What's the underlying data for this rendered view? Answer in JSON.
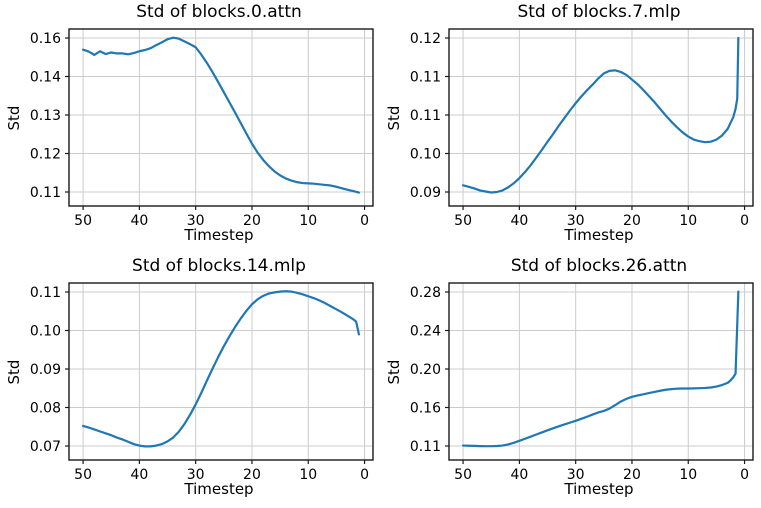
{
  "figure": {
    "background": "#ffffff",
    "line_color": "#1f77b4",
    "grid_color": "#cccccc",
    "spine_color": "#1a1a1a",
    "text_color": "#000000"
  },
  "chart_data": [
    {
      "type": "line",
      "title": "Std of blocks.0.attn",
      "xlabel": "Timestep",
      "ylabel": "Std",
      "x_axis_reversed": true,
      "xlim": [
        52.5,
        -1.5
      ],
      "x_ticks": [
        50,
        40,
        30,
        20,
        10,
        0
      ],
      "y_tick_values": [
        0.16,
        0.1475,
        0.135,
        0.1225,
        0.11
      ],
      "y_tick_labels": [
        "0.16",
        "0.14",
        "0.13",
        "0.12",
        "0.11"
      ],
      "grid": true,
      "series": [
        {
          "name": "std",
          "points": [
            [
              50,
              0.1562
            ],
            [
              49,
              0.1556
            ],
            [
              48,
              0.1545
            ],
            [
              47,
              0.1557
            ],
            [
              46,
              0.1548
            ],
            [
              45,
              0.1553
            ],
            [
              44,
              0.155
            ],
            [
              43,
              0.155
            ],
            [
              42,
              0.1547
            ],
            [
              41,
              0.1551
            ],
            [
              40,
              0.1557
            ],
            [
              39,
              0.1561
            ],
            [
              38,
              0.1567
            ],
            [
              37,
              0.1577
            ],
            [
              36,
              0.1586
            ],
            [
              35,
              0.1596
            ],
            [
              34,
              0.1601
            ],
            [
              33,
              0.1598
            ],
            [
              32,
              0.1589
            ],
            [
              31,
              0.158
            ],
            [
              30,
              0.157
            ],
            [
              29,
              0.1546
            ],
            [
              28,
              0.1519
            ],
            [
              27,
              0.1489
            ],
            [
              26,
              0.1457
            ],
            [
              25,
              0.1424
            ],
            [
              24,
              0.1391
            ],
            [
              23,
              0.1358
            ],
            [
              22,
              0.1324
            ],
            [
              21,
              0.129
            ],
            [
              20,
              0.1257
            ],
            [
              19,
              0.1228
            ],
            [
              18,
              0.1204
            ],
            [
              17,
              0.1184
            ],
            [
              16,
              0.1167
            ],
            [
              15,
              0.1154
            ],
            [
              14,
              0.1144
            ],
            [
              13,
              0.1137
            ],
            [
              12,
              0.1132
            ],
            [
              11,
              0.1129
            ],
            [
              10,
              0.1128
            ],
            [
              9,
              0.1127
            ],
            [
              8,
              0.1125
            ],
            [
              7,
              0.1123
            ],
            [
              6,
              0.1121
            ],
            [
              5,
              0.1117
            ],
            [
              4,
              0.1112
            ],
            [
              3,
              0.1107
            ],
            [
              2,
              0.1103
            ],
            [
              1,
              0.1098
            ]
          ]
        }
      ]
    },
    {
      "type": "line",
      "title": "Std of blocks.7.mlp",
      "xlabel": "Timestep",
      "ylabel": "Std",
      "x_axis_reversed": true,
      "xlim": [
        52.5,
        -1.5
      ],
      "x_ticks": [
        50,
        40,
        30,
        20,
        10,
        0
      ],
      "y_tick_values": [
        0.12,
        0.1125,
        0.105,
        0.0975,
        0.09
      ],
      "y_tick_labels": [
        "0.12",
        "0.11",
        "0.11",
        "0.10",
        "0.09"
      ],
      "grid": true,
      "series": [
        {
          "name": "std",
          "points": [
            [
              50,
              0.0913
            ],
            [
              49,
              0.091
            ],
            [
              48,
              0.0907
            ],
            [
              47,
              0.0903
            ],
            [
              46,
              0.0901
            ],
            [
              45,
              0.0899
            ],
            [
              44,
              0.09
            ],
            [
              43,
              0.0903
            ],
            [
              42,
              0.0909
            ],
            [
              41,
              0.0917
            ],
            [
              40,
              0.0927
            ],
            [
              39,
              0.0939
            ],
            [
              38,
              0.0952
            ],
            [
              37,
              0.0967
            ],
            [
              36,
              0.0982
            ],
            [
              35,
              0.0998
            ],
            [
              34,
              0.1013
            ],
            [
              33,
              0.1029
            ],
            [
              32,
              0.1044
            ],
            [
              31,
              0.1059
            ],
            [
              30,
              0.1073
            ],
            [
              29,
              0.1086
            ],
            [
              28,
              0.1098
            ],
            [
              27,
              0.1109
            ],
            [
              26,
              0.1121
            ],
            [
              25,
              0.1131
            ],
            [
              24,
              0.1136
            ],
            [
              23,
              0.1137
            ],
            [
              22,
              0.1134
            ],
            [
              21,
              0.1128
            ],
            [
              20,
              0.1119
            ],
            [
              19,
              0.111
            ],
            [
              18,
              0.1099
            ],
            [
              17,
              0.1087
            ],
            [
              16,
              0.1075
            ],
            [
              15,
              0.1062
            ],
            [
              14,
              0.1049
            ],
            [
              13,
              0.1037
            ],
            [
              12,
              0.1026
            ],
            [
              11,
              0.1016
            ],
            [
              10,
              0.1008
            ],
            [
              9,
              0.1002
            ],
            [
              8,
              0.0999
            ],
            [
              7,
              0.0997
            ],
            [
              6,
              0.0998
            ],
            [
              5,
              0.1002
            ],
            [
              4,
              0.101
            ],
            [
              3,
              0.1023
            ],
            [
              2,
              0.1046
            ],
            [
              1.6,
              0.1062
            ],
            [
              1.3,
              0.1082
            ],
            [
              1.1,
              0.12
            ]
          ]
        }
      ]
    },
    {
      "type": "line",
      "title": "Std of blocks.14.mlp",
      "xlabel": "Timestep",
      "ylabel": "Std",
      "x_axis_reversed": true,
      "xlim": [
        52.5,
        -1.5
      ],
      "x_ticks": [
        50,
        40,
        30,
        20,
        10,
        0
      ],
      "y_tick_values": [
        0.11,
        0.1,
        0.09,
        0.08,
        0.07
      ],
      "y_tick_labels": [
        "0.11",
        "0.10",
        "0.09",
        "0.08",
        "0.07"
      ],
      "grid": true,
      "series": [
        {
          "name": "std",
          "points": [
            [
              50,
              0.0752
            ],
            [
              49,
              0.0748
            ],
            [
              48,
              0.0743
            ],
            [
              47,
              0.0738
            ],
            [
              46,
              0.0733
            ],
            [
              45,
              0.0728
            ],
            [
              44,
              0.0722
            ],
            [
              43,
              0.0717
            ],
            [
              42,
              0.0711
            ],
            [
              41,
              0.0705
            ],
            [
              40,
              0.0701
            ],
            [
              39,
              0.0699
            ],
            [
              38,
              0.0699
            ],
            [
              37,
              0.0701
            ],
            [
              36,
              0.0705
            ],
            [
              35,
              0.0712
            ],
            [
              34,
              0.0722
            ],
            [
              33,
              0.0737
            ],
            [
              32,
              0.0757
            ],
            [
              31,
              0.0781
            ],
            [
              30,
              0.0808
            ],
            [
              29,
              0.0838
            ],
            [
              28,
              0.087
            ],
            [
              27,
              0.0901
            ],
            [
              26,
              0.0931
            ],
            [
              25,
              0.0959
            ],
            [
              24,
              0.0985
            ],
            [
              23,
              0.1009
            ],
            [
              22,
              0.1031
            ],
            [
              21,
              0.1051
            ],
            [
              20,
              0.1068
            ],
            [
              19,
              0.1081
            ],
            [
              18,
              0.109
            ],
            [
              17,
              0.1096
            ],
            [
              16,
              0.1099
            ],
            [
              15,
              0.1101
            ],
            [
              14,
              0.1102
            ],
            [
              13,
              0.1101
            ],
            [
              12,
              0.1098
            ],
            [
              11,
              0.1094
            ],
            [
              10,
              0.1089
            ],
            [
              9,
              0.1084
            ],
            [
              8,
              0.1078
            ],
            [
              7,
              0.1071
            ],
            [
              6,
              0.1063
            ],
            [
              5,
              0.1055
            ],
            [
              4,
              0.1047
            ],
            [
              3,
              0.1038
            ],
            [
              2,
              0.1029
            ],
            [
              1.5,
              0.1023
            ],
            [
              1,
              0.099
            ]
          ]
        }
      ]
    },
    {
      "type": "line",
      "title": "Std of blocks.26.attn",
      "xlabel": "Timestep",
      "ylabel": "Std",
      "x_axis_reversed": true,
      "xlim": [
        52.5,
        -1.5
      ],
      "x_ticks": [
        50,
        40,
        30,
        20,
        10,
        0
      ],
      "y_tick_values": [
        0.2825,
        0.24,
        0.1975,
        0.155,
        0.1125
      ],
      "y_tick_labels": [
        "0.28",
        "0.24",
        "0.20",
        "0.16",
        "0.11"
      ],
      "grid": true,
      "series": [
        {
          "name": "std",
          "points": [
            [
              50,
              0.113
            ],
            [
              49,
              0.1128
            ],
            [
              48,
              0.1126
            ],
            [
              47,
              0.1124
            ],
            [
              46,
              0.1123
            ],
            [
              45,
              0.1123
            ],
            [
              44,
              0.1125
            ],
            [
              43,
              0.113
            ],
            [
              42,
              0.1142
            ],
            [
              41,
              0.116
            ],
            [
              40,
              0.1182
            ],
            [
              39,
              0.1205
            ],
            [
              38,
              0.1228
            ],
            [
              37,
              0.1252
            ],
            [
              36,
              0.1275
            ],
            [
              35,
              0.1298
            ],
            [
              34,
              0.132
            ],
            [
              33,
              0.1342
            ],
            [
              32,
              0.1363
            ],
            [
              31,
              0.1383
            ],
            [
              30,
              0.1403
            ],
            [
              29,
              0.1425
            ],
            [
              28,
              0.1448
            ],
            [
              27,
              0.1472
            ],
            [
              26,
              0.1495
            ],
            [
              25,
              0.1512
            ],
            [
              24,
              0.1538
            ],
            [
              23,
              0.1575
            ],
            [
              22,
              0.1615
            ],
            [
              21,
              0.1645
            ],
            [
              20,
              0.1668
            ],
            [
              19,
              0.1683
            ],
            [
              18,
              0.1696
            ],
            [
              17,
              0.1709
            ],
            [
              16,
              0.1722
            ],
            [
              15,
              0.1735
            ],
            [
              14,
              0.1746
            ],
            [
              13,
              0.1753
            ],
            [
              12,
              0.1758
            ],
            [
              11,
              0.176
            ],
            [
              10,
              0.176
            ],
            [
              9,
              0.1761
            ],
            [
              8,
              0.1763
            ],
            [
              7,
              0.1766
            ],
            [
              6,
              0.1771
            ],
            [
              5,
              0.1781
            ],
            [
              4,
              0.1798
            ],
            [
              3,
              0.1822
            ],
            [
              2.5,
              0.1848
            ],
            [
              2,
              0.1885
            ],
            [
              1.6,
              0.1922
            ],
            [
              1.1,
              0.283
            ]
          ]
        }
      ]
    }
  ]
}
